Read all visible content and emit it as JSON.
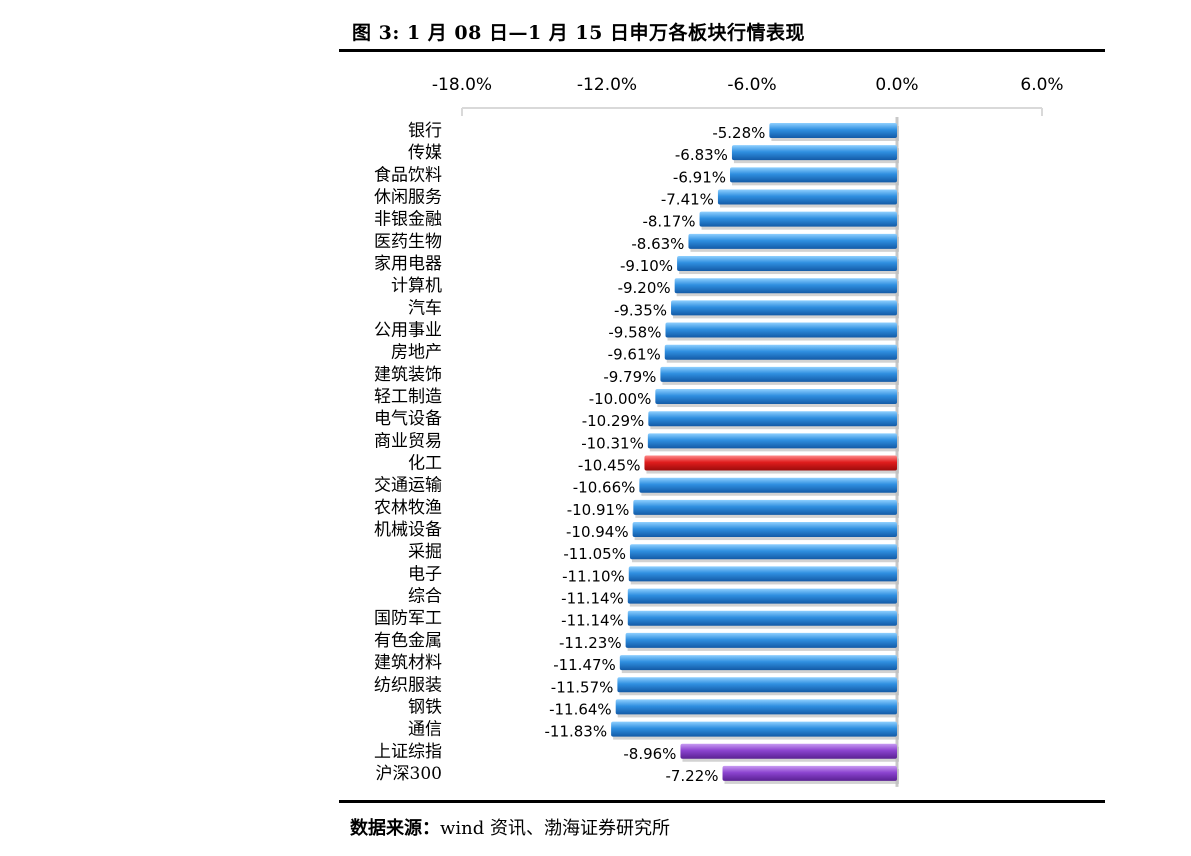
{
  "title": "图 3:  1 月 08 日—1 月 15 日申万各板块行情表现",
  "source": {
    "prefix": "数据来源：",
    "text": "wind 资讯、渤海证券研究所"
  },
  "colors": {
    "default_bar": "#2e86d9",
    "highlight_bar": "#e02020",
    "index_bar": "#8a3fc8"
  },
  "chart_data": {
    "type": "bar",
    "orientation": "horizontal",
    "title": "",
    "xlabel": "",
    "ylabel": "",
    "xlim": [
      -0.18,
      0.06
    ],
    "x_ticks": [
      "-18.0%",
      "-12.0%",
      "-6.0%",
      "0.0%",
      "6.0%"
    ],
    "x_tick_values": [
      -0.18,
      -0.12,
      -0.06,
      0.0,
      0.06
    ],
    "grid": false,
    "legend": "none",
    "categories": [
      "银行",
      "传媒",
      "食品饮料",
      "休闲服务",
      "非银金融",
      "医药生物",
      "家用电器",
      "计算机",
      "汽车",
      "公用事业",
      "房地产",
      "建筑装饰",
      "轻工制造",
      "电气设备",
      "商业贸易",
      "化工",
      "交通运输",
      "农林牧渔",
      "机械设备",
      "采掘",
      "电子",
      "综合",
      "国防军工",
      "有色金属",
      "建筑材料",
      "纺织服装",
      "钢铁",
      "通信",
      "上证综指",
      "沪深300"
    ],
    "values": [
      -0.0528,
      -0.0683,
      -0.0691,
      -0.0741,
      -0.0817,
      -0.0863,
      -0.091,
      -0.092,
      -0.0935,
      -0.0958,
      -0.0961,
      -0.0979,
      -0.1,
      -0.1029,
      -0.1031,
      -0.1045,
      -0.1066,
      -0.1091,
      -0.1094,
      -0.1105,
      -0.111,
      -0.1114,
      -0.1114,
      -0.1123,
      -0.1147,
      -0.1157,
      -0.1164,
      -0.1183,
      -0.0896,
      -0.0722
    ],
    "value_labels": [
      "-5.28%",
      "-6.83%",
      "-6.91%",
      "-7.41%",
      "-8.17%",
      "-8.63%",
      "-9.10%",
      "-9.20%",
      "-9.35%",
      "-9.58%",
      "-9.61%",
      "-9.79%",
      "-10.00%",
      "-10.29%",
      "-10.31%",
      "-10.45%",
      "-10.66%",
      "-10.91%",
      "-10.94%",
      "-11.05%",
      "-11.10%",
      "-11.14%",
      "-11.14%",
      "-11.23%",
      "-11.47%",
      "-11.57%",
      "-11.64%",
      "-11.83%",
      "-8.96%",
      "-7.22%"
    ],
    "highlight": [
      "化工"
    ],
    "index_series": [
      "上证综指",
      "沪深300"
    ]
  }
}
